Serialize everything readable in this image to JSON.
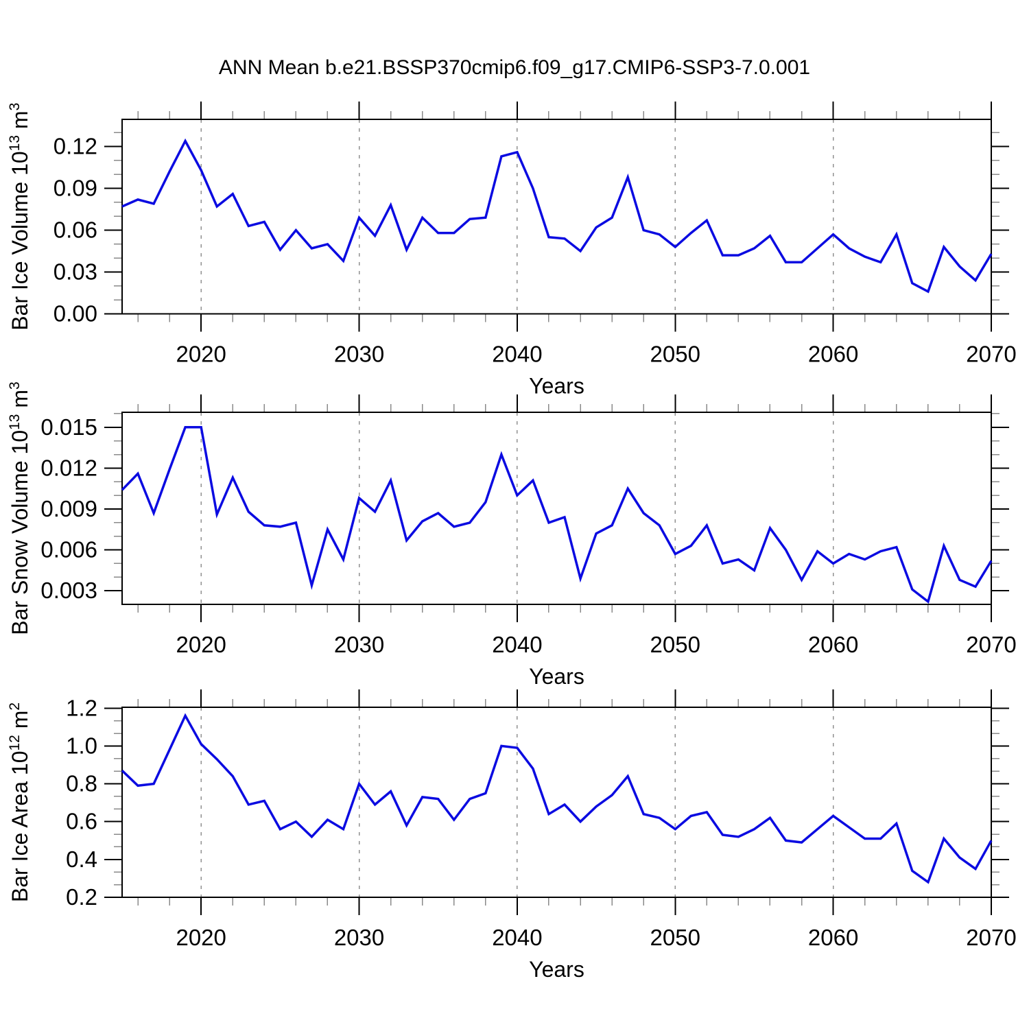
{
  "title": "ANN Mean b.e21.BSSP370cmip6.f09_g17.CMIP6-SSP3-7.0.001",
  "colors": {
    "line": "#0b0be1",
    "grid": "#909090",
    "frame": "#000000",
    "minor_tick": "#8a8a8a",
    "major_tick": "#000000",
    "background": "#ffffff"
  },
  "x_years": [
    2015,
    2016,
    2017,
    2018,
    2019,
    2020,
    2021,
    2022,
    2023,
    2024,
    2025,
    2026,
    2027,
    2028,
    2029,
    2030,
    2031,
    2032,
    2033,
    2034,
    2035,
    2036,
    2037,
    2038,
    2039,
    2040,
    2041,
    2042,
    2043,
    2044,
    2045,
    2046,
    2047,
    2048,
    2049,
    2050,
    2051,
    2052,
    2053,
    2054,
    2055,
    2056,
    2057,
    2058,
    2059,
    2060,
    2061,
    2062,
    2063,
    2064,
    2065,
    2066,
    2067,
    2068,
    2069,
    2070
  ],
  "chart_data": [
    {
      "type": "line",
      "panel": "ice-volume",
      "title": "ANN Mean b.e21.BSSP370cmip6.f09_g17.CMIP6-SSP3-7.0.001",
      "ylabel": "Bar Ice Volume 10^13 m^3",
      "ylabel_rich": [
        {
          "t": "Bar Ice Volume 10"
        },
        {
          "t": "13",
          "sup": true
        },
        {
          "t": " m"
        },
        {
          "t": "3",
          "sup": true
        }
      ],
      "xlabel": "Years",
      "series_color": "#0b0be1",
      "x_start": 2015,
      "x_step": 1,
      "xlim": [
        2015,
        2070
      ],
      "xticks": [
        2020,
        2030,
        2040,
        2050,
        2060,
        2070
      ],
      "x_minor_step": 2,
      "grid_x": [
        2020,
        2030,
        2040,
        2050,
        2060
      ],
      "ylim": [
        0,
        0.1395
      ],
      "yticks": [
        0.0,
        0.03,
        0.06,
        0.09,
        0.12
      ],
      "ytick_labels": [
        "0.00",
        "0.03",
        "0.06",
        "0.09",
        "0.12"
      ],
      "y_minor_step": 0.01,
      "values": [
        0.077,
        0.082,
        0.079,
        0.102,
        0.124,
        0.103,
        0.077,
        0.086,
        0.063,
        0.066,
        0.046,
        0.06,
        0.047,
        0.05,
        0.038,
        0.069,
        0.056,
        0.078,
        0.046,
        0.069,
        0.058,
        0.058,
        0.068,
        0.069,
        0.113,
        0.116,
        0.09,
        0.055,
        0.054,
        0.045,
        0.062,
        0.069,
        0.098,
        0.06,
        0.057,
        0.048,
        0.058,
        0.067,
        0.042,
        0.042,
        0.047,
        0.056,
        0.037,
        0.037,
        0.047,
        0.057,
        0.047,
        0.041,
        0.037,
        0.057,
        0.022,
        0.016,
        0.048,
        0.034,
        0.024,
        0.043
      ]
    },
    {
      "type": "line",
      "panel": "snow-volume",
      "ylabel": "Bar Snow Volume 10^13 m^3",
      "ylabel_rich": [
        {
          "t": "Bar Snow Volume 10"
        },
        {
          "t": "13",
          "sup": true
        },
        {
          "t": " m"
        },
        {
          "t": "3",
          "sup": true
        }
      ],
      "xlabel": "Years",
      "series_color": "#0b0be1",
      "x_start": 2015,
      "x_step": 1,
      "xlim": [
        2015,
        2070
      ],
      "xticks": [
        2020,
        2030,
        2040,
        2050,
        2060,
        2070
      ],
      "x_minor_step": 2,
      "grid_x": [
        2020,
        2030,
        2040,
        2050,
        2060
      ],
      "ylim": [
        0.002,
        0.0161
      ],
      "yticks": [
        0.003,
        0.006,
        0.009,
        0.012,
        0.015
      ],
      "ytick_labels": [
        "0.003",
        "0.006",
        "0.009",
        "0.012",
        "0.015"
      ],
      "y_minor_step": 0.001,
      "values": [
        0.0104,
        0.0116,
        0.0087,
        0.0119,
        0.015,
        0.015,
        0.0086,
        0.0113,
        0.0088,
        0.0078,
        0.0077,
        0.008,
        0.0034,
        0.0075,
        0.0053,
        0.0098,
        0.0088,
        0.0111,
        0.0067,
        0.0081,
        0.0087,
        0.0077,
        0.008,
        0.0095,
        0.013,
        0.01,
        0.0111,
        0.008,
        0.0084,
        0.0039,
        0.0072,
        0.0078,
        0.0105,
        0.0087,
        0.0078,
        0.0057,
        0.0063,
        0.0078,
        0.005,
        0.0053,
        0.0045,
        0.0076,
        0.006,
        0.0038,
        0.0059,
        0.005,
        0.0057,
        0.0053,
        0.0059,
        0.0062,
        0.0031,
        0.0022,
        0.0063,
        0.0038,
        0.0033,
        0.0052
      ]
    },
    {
      "type": "line",
      "panel": "ice-area",
      "ylabel": "Bar Ice Area 10^12 m^2",
      "ylabel_rich": [
        {
          "t": "Bar Ice Area 10"
        },
        {
          "t": "12",
          "sup": true
        },
        {
          "t": " m"
        },
        {
          "t": "2",
          "sup": true
        }
      ],
      "xlabel": "Years",
      "series_color": "#0b0be1",
      "x_start": 2015,
      "x_step": 1,
      "xlim": [
        2015,
        2070
      ],
      "xticks": [
        2020,
        2030,
        2040,
        2050,
        2060,
        2070
      ],
      "x_minor_step": 2,
      "grid_x": [
        2020,
        2030,
        2040,
        2050,
        2060
      ],
      "ylim": [
        0.2,
        1.2047
      ],
      "yticks": [
        0.2,
        0.4,
        0.6,
        0.8,
        1.0,
        1.2
      ],
      "ytick_labels": [
        "0.2",
        "0.4",
        "0.6",
        "0.8",
        "1.0",
        "1.2"
      ],
      "y_minor_step": 0.0666667,
      "values": [
        0.87,
        0.79,
        0.8,
        0.98,
        1.16,
        1.01,
        0.93,
        0.84,
        0.69,
        0.71,
        0.56,
        0.6,
        0.52,
        0.61,
        0.56,
        0.8,
        0.69,
        0.76,
        0.58,
        0.73,
        0.72,
        0.61,
        0.72,
        0.75,
        1.0,
        0.99,
        0.88,
        0.64,
        0.69,
        0.6,
        0.68,
        0.74,
        0.84,
        0.64,
        0.62,
        0.56,
        0.63,
        0.65,
        0.53,
        0.52,
        0.56,
        0.62,
        0.5,
        0.49,
        0.56,
        0.63,
        0.57,
        0.51,
        0.51,
        0.59,
        0.34,
        0.28,
        0.51,
        0.41,
        0.35,
        0.5
      ]
    }
  ]
}
